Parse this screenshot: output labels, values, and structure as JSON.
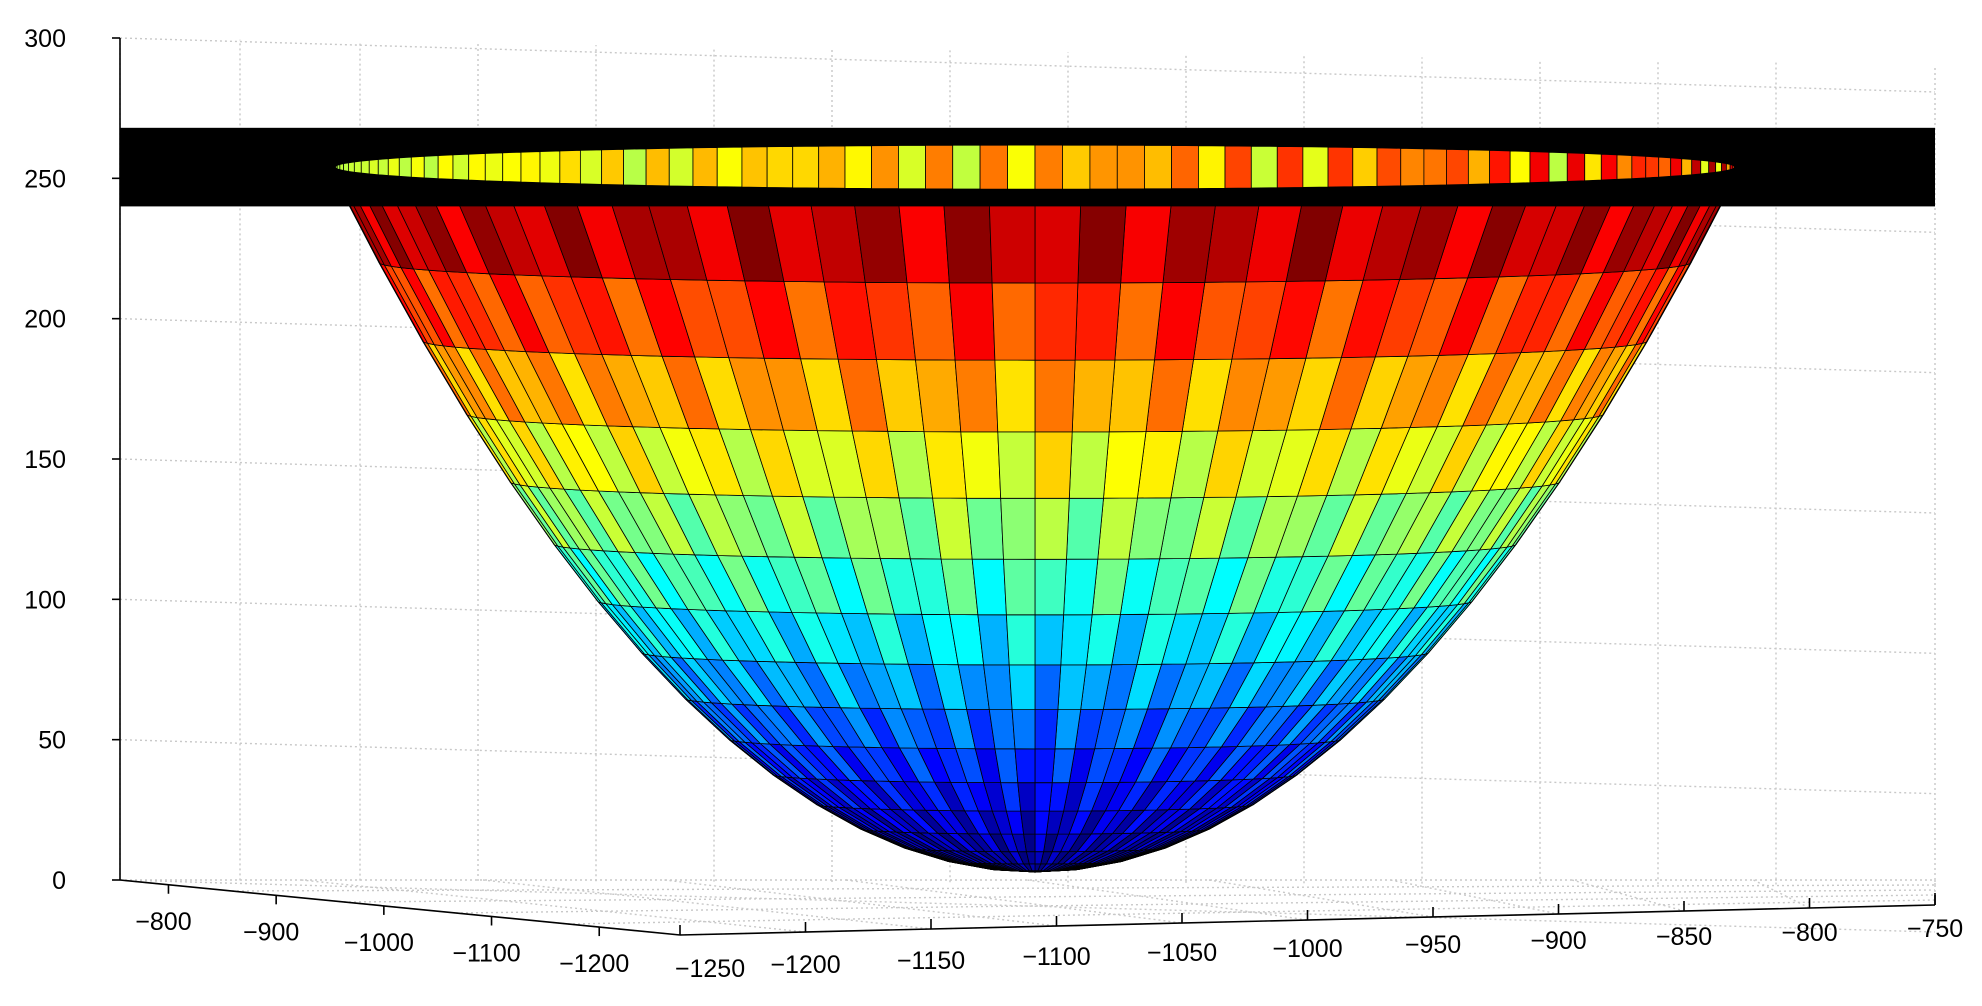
{
  "chart_data": {
    "type": "surface",
    "title": "",
    "xlabel": "",
    "ylabel": "",
    "zlabel": "",
    "grid": true,
    "colormap": "jet",
    "z_axis": {
      "ticks": [
        "0",
        "50",
        "100",
        "150",
        "200",
        "250",
        "300"
      ],
      "range": [
        0,
        300
      ]
    },
    "left_axis": {
      "ticks": [
        "−800",
        "−900",
        "−1000",
        "−1100",
        "−1200"
      ],
      "range": [
        -1250,
        -750
      ]
    },
    "front_axis": {
      "ticks": [
        "−1250",
        "−1200",
        "−1150",
        "−1100",
        "−1050",
        "−1000",
        "−950",
        "−900",
        "−850",
        "−800",
        "−750"
      ],
      "range": [
        -1250,
        -750
      ]
    },
    "surface": {
      "shape": "paraboloid bowl",
      "center": [
        -1000,
        -1000
      ],
      "rim_radius": 250,
      "z_min": 0,
      "z_rim": 250,
      "rim_band": [
        240,
        268
      ],
      "rim_band_color": "#000000"
    },
    "colors": {
      "jet_low": "#00008f",
      "jet_mid": "#7fff7f",
      "jet_high": "#800000"
    }
  }
}
